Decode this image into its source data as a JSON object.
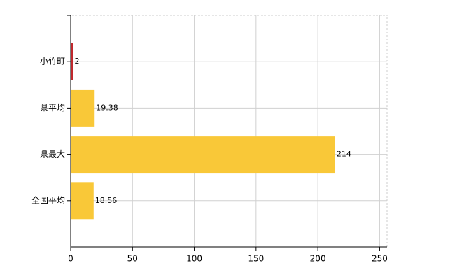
{
  "chart_data": {
    "type": "barh",
    "categories": [
      "小竹町",
      "県平均",
      "県最大",
      "全国平均"
    ],
    "values": [
      2,
      19.38,
      214,
      18.56
    ],
    "colors": [
      "#c0282d",
      "#f9c838",
      "#f9c838",
      "#f9c838"
    ],
    "xlim": [
      0,
      256
    ],
    "xticks": [
      0,
      50,
      100,
      150,
      200,
      250
    ],
    "grid": true
  }
}
